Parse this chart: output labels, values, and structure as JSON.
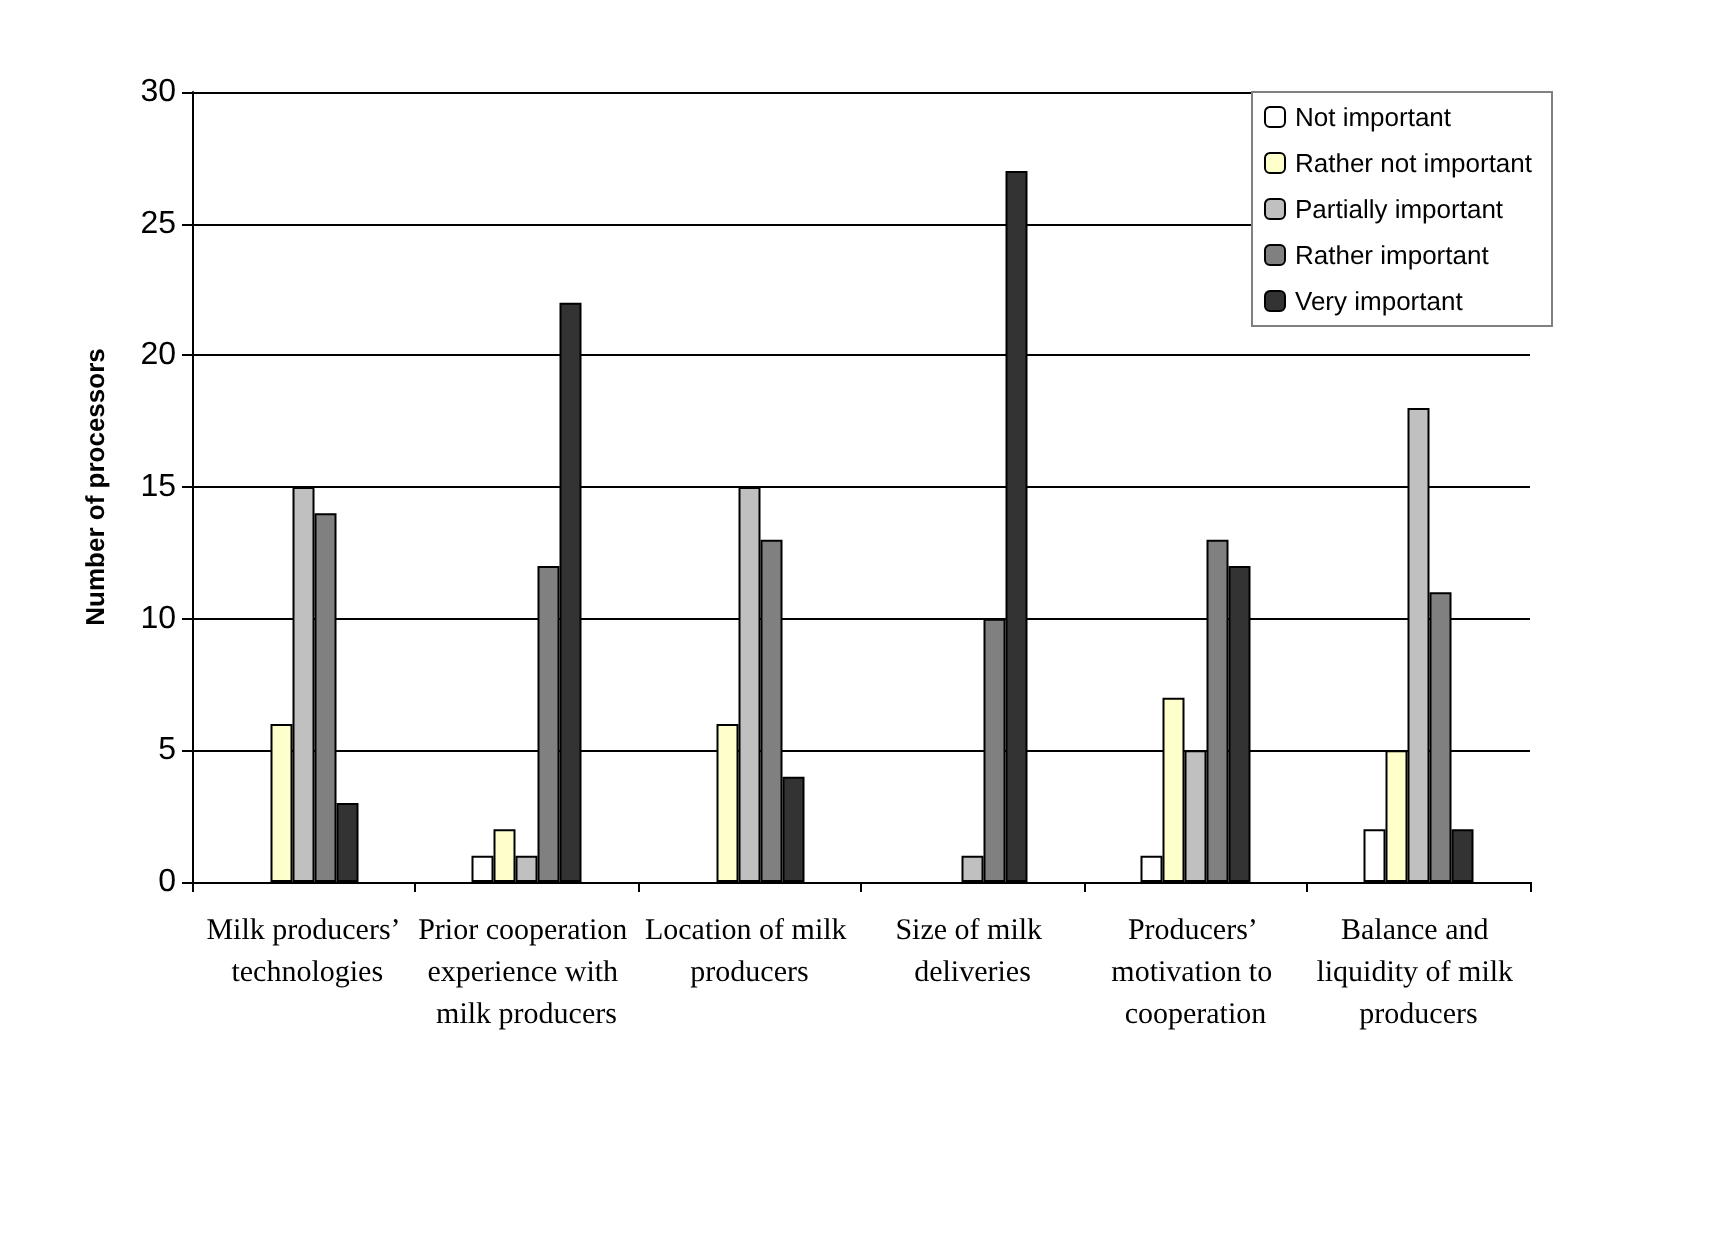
{
  "chart_data": {
    "type": "bar",
    "ylabel": "Number of processors",
    "categories": [
      "Milk producers’ technologies",
      "Prior cooperation experience with milk producers",
      "Location of milk producers",
      "Size of milk deliveries",
      "Producers’ motivation to cooperation",
      "Balance and liquidity of milk producers"
    ],
    "series": [
      {
        "name": "Not important",
        "color": "#ffffff",
        "values": [
          0,
          1,
          0,
          0,
          1,
          2
        ]
      },
      {
        "name": "Rather not important",
        "color": "#ffffcc",
        "values": [
          6,
          2,
          6,
          0,
          7,
          5
        ]
      },
      {
        "name": "Partially important",
        "color": "#c0c0c0",
        "values": [
          15,
          1,
          15,
          1,
          5,
          18
        ]
      },
      {
        "name": "Rather important",
        "color": "#808080",
        "values": [
          14,
          12,
          13,
          10,
          13,
          11
        ]
      },
      {
        "name": "Very important",
        "color": "#333333",
        "values": [
          3,
          22,
          4,
          27,
          12,
          2
        ]
      }
    ],
    "ylim": [
      0,
      30
    ],
    "yticks": [
      0,
      5,
      10,
      15,
      20,
      25,
      30
    ],
    "grid": "y",
    "legend": "top right"
  }
}
